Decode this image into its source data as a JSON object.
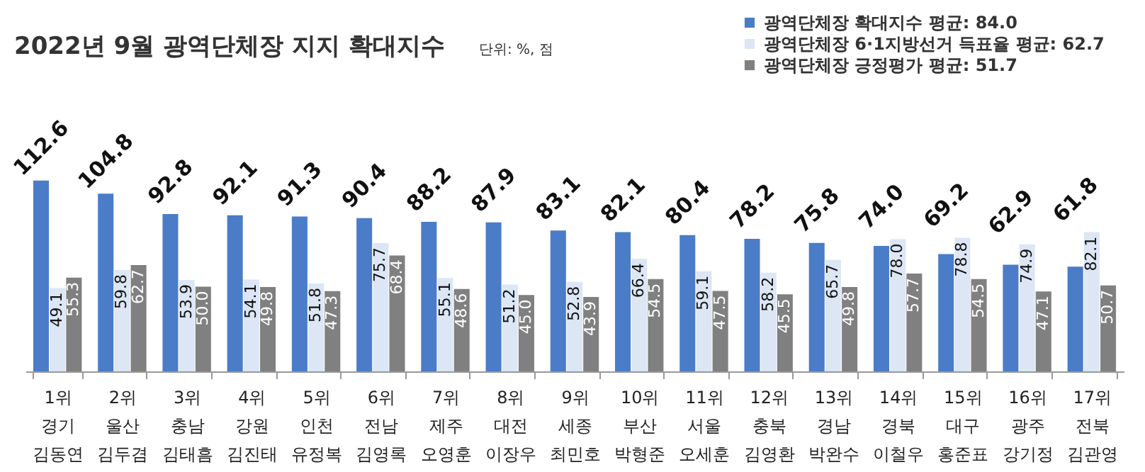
{
  "chart_data": {
    "type": "bar",
    "title": "2022년 9월 광역단체장 지지 확대지수",
    "annotations": [
      "단위: %, 점"
    ],
    "categories": [
      "1위\n경기\n김동연",
      "2위\n울산\n김두겸",
      "3위\n충남\n김태흠",
      "4위\n강원\n김진태",
      "5위\n인천\n유정복",
      "6위\n전남\n김영록",
      "7위\n제주\n오영훈",
      "8위\n대전\n이장우",
      "9위\n세종\n최민호",
      "10위\n부산\n박형준",
      "11위\n서울\n오세훈",
      "12위\n충북\n김영환",
      "13위\n경남\n박완수",
      "14위\n경북\n이철우",
      "15위\n대구\n홍준표",
      "16위\n광주\n강기정",
      "17위\n전북\n김관영"
    ],
    "series": [
      {
        "name": "광역단체장 확대지수 평균: 84.0",
        "color": "#4a7cc8",
        "values": [
          112.6,
          104.8,
          92.8,
          92.1,
          91.3,
          90.4,
          88.2,
          87.9,
          83.1,
          82.1,
          80.4,
          78.2,
          75.8,
          74.0,
          69.2,
          62.9,
          61.8
        ],
        "value_labels": [
          "112.6",
          "104.8",
          "92.8",
          "92.1",
          "91.3",
          "90.4",
          "88.2",
          "87.9",
          "83.1",
          "82.1",
          "80.4",
          "78.2",
          "75.8",
          "74.0",
          "69.2",
          "62.9",
          "61.8"
        ]
      },
      {
        "name": "광역단체장 6·1지방선거 득표율 평균: 62.7",
        "color": "#dce6f4",
        "values": [
          49.1,
          59.8,
          53.9,
          54.1,
          51.8,
          75.7,
          55.1,
          51.2,
          52.8,
          66.4,
          59.1,
          58.2,
          65.7,
          78.0,
          78.8,
          74.9,
          82.1
        ],
        "value_labels": [
          "49.1",
          "59.8",
          "53.9",
          "54.1",
          "51.8",
          "75.7",
          "55.1",
          "51.2",
          "52.8",
          "66.4",
          "59.1",
          "58.2",
          "65.7",
          "78.0",
          "78.8",
          "74.9",
          "82.1"
        ]
      },
      {
        "name": "광역단체장 긍정평가 평균: 51.7",
        "color": "#808080",
        "values": [
          55.3,
          62.7,
          50.0,
          49.8,
          47.3,
          68.4,
          48.6,
          45.0,
          43.9,
          54.5,
          47.5,
          45.5,
          49.8,
          57.7,
          54.5,
          47.1,
          50.7
        ],
        "value_labels": [
          "55.3",
          "62.7",
          "50.0",
          "49.8",
          "47.3",
          "68.4",
          "48.6",
          "45.0",
          "43.9",
          "54.5",
          "47.5",
          "45.5",
          "49.8",
          "57.7",
          "54.5",
          "47.1",
          "50.7"
        ]
      }
    ],
    "legend": "top right"
  }
}
